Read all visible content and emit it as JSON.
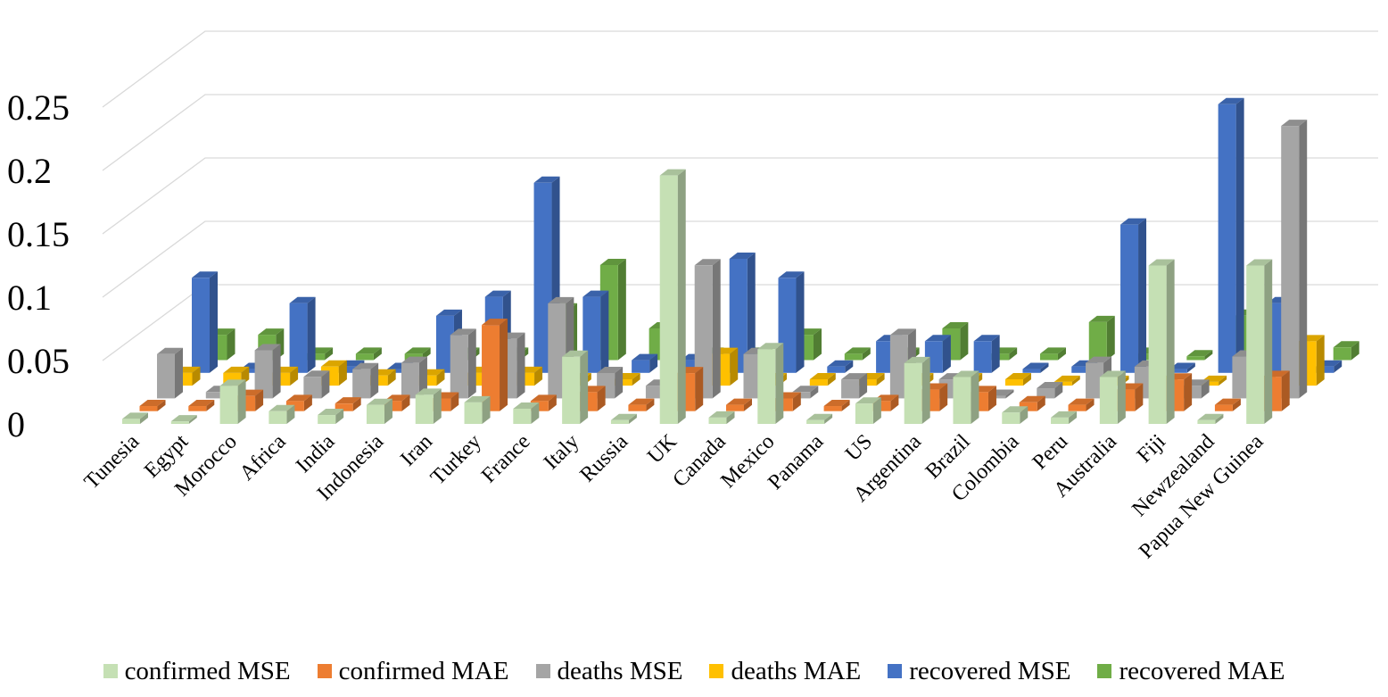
{
  "chart_data": {
    "type": "bar",
    "title": "",
    "xlabel": "",
    "ylabel": "",
    "ylim": [
      0,
      0.25
    ],
    "yticks": [
      "0",
      "0.05",
      "0.1",
      "0.15",
      "0.2",
      "0.25"
    ],
    "legend_position": "bottom",
    "grid": true,
    "categories": [
      "Tunesia",
      "Egypt",
      "Morocco",
      "Africa",
      "India",
      "Indonesia",
      "Iran",
      "Turkey",
      "France",
      "Italy",
      "Russia",
      "UK",
      "Canada",
      "Mexico",
      "Panama",
      "US",
      "Argentina",
      "Brazil",
      "Colombia",
      "Peru",
      "Australia",
      "Fiji",
      "Newzealand",
      "Papua New Guinea"
    ],
    "series": [
      {
        "name": "confirmed MSE",
        "color": "#c5e0b4",
        "values": [
          0.004,
          0.002,
          0.03,
          0.01,
          0.007,
          0.015,
          0.023,
          0.017,
          0.012,
          0.053,
          0.003,
          0.196,
          0.005,
          0.059,
          0.003,
          0.016,
          0.048,
          0.037,
          0.009,
          0.005,
          0.037,
          0.125,
          0.003,
          0.125
        ]
      },
      {
        "name": "confirmed MAE",
        "color": "#ed7d31",
        "values": [
          0.004,
          0.004,
          0.012,
          0.008,
          0.006,
          0.008,
          0.01,
          0.068,
          0.008,
          0.015,
          0.005,
          0.03,
          0.005,
          0.01,
          0.004,
          0.008,
          0.017,
          0.015,
          0.007,
          0.005,
          0.017,
          0.025,
          0.005,
          0.027
        ]
      },
      {
        "name": "deaths MSE",
        "color": "#a5a5a5",
        "values": [
          0.035,
          0.005,
          0.038,
          0.017,
          0.023,
          0.028,
          0.05,
          0.047,
          0.075,
          0.02,
          0.01,
          0.105,
          0.035,
          0.005,
          0.015,
          0.05,
          0.015,
          0.002,
          0.008,
          0.028,
          0.025,
          0.01,
          0.033,
          0.215
        ]
      },
      {
        "name": "deaths MAE",
        "color": "#ffc000",
        "values": [
          0.01,
          0.01,
          0.01,
          0.015,
          0.008,
          0.008,
          0.01,
          0.01,
          0.005,
          0.005,
          0.005,
          0.025,
          0.005,
          0.005,
          0.005,
          0.005,
          0.005,
          0.005,
          0.003,
          0.003,
          0.003,
          0.003,
          0.003,
          0.035
        ]
      },
      {
        "name": "recovered MSE",
        "color": "#4472c4",
        "values": [
          0.075,
          0.003,
          0.055,
          0.005,
          0.003,
          0.045,
          0.06,
          0.15,
          0.06,
          0.01,
          0.01,
          0.09,
          0.075,
          0.005,
          0.025,
          0.025,
          0.025,
          0.003,
          0.005,
          0.117,
          0.003,
          0.212,
          0.055,
          0.005
        ]
      },
      {
        "name": "recovered MAE",
        "color": "#70ad47",
        "values": [
          0.02,
          0.02,
          0.005,
          0.005,
          0.005,
          0.005,
          0.005,
          0.04,
          0.075,
          0.025,
          0.005,
          0.005,
          0.02,
          0.005,
          0.005,
          0.025,
          0.005,
          0.005,
          0.03,
          0.005,
          0.003,
          0.035,
          0.01,
          0.01
        ]
      }
    ]
  }
}
